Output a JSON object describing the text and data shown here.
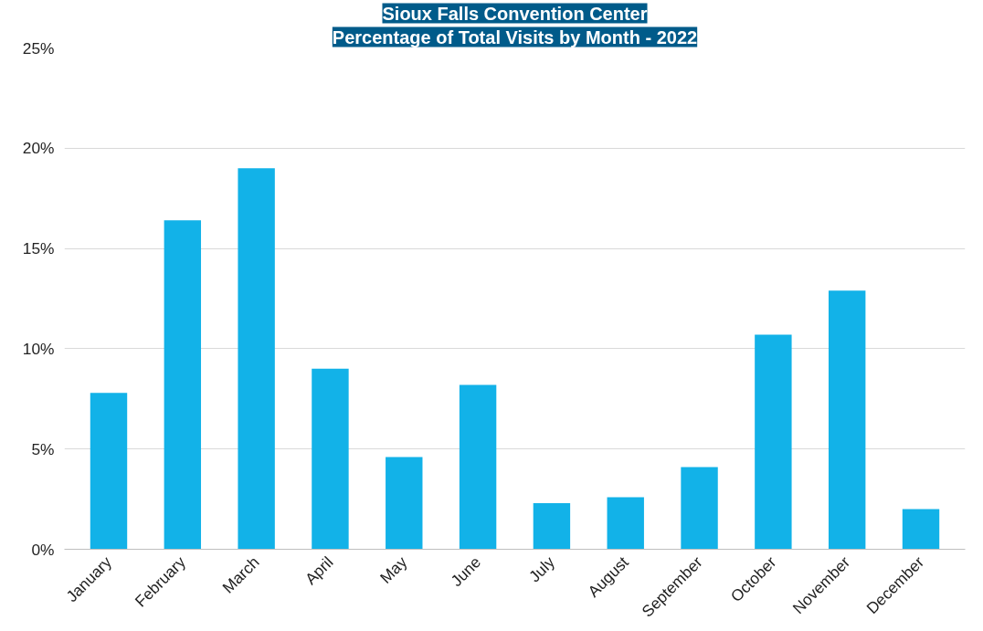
{
  "chart_data": {
    "type": "bar",
    "title": "Sioux Falls Convention Center",
    "subtitle": "Percentage of Total Visits by Month - 2022",
    "categories": [
      "January",
      "February",
      "March",
      "April",
      "May",
      "June",
      "July",
      "August",
      "September",
      "October",
      "November",
      "December"
    ],
    "values": [
      7.8,
      16.4,
      19.0,
      9.0,
      4.6,
      8.2,
      2.3,
      2.6,
      4.1,
      10.7,
      12.9,
      2.0
    ],
    "color": "#12b2e8",
    "ylim": [
      0,
      25
    ],
    "yticks": [
      {
        "value": 0,
        "label": "0%"
      },
      {
        "value": 5,
        "label": "5%"
      },
      {
        "value": 10,
        "label": "10%"
      },
      {
        "value": 15,
        "label": "15%"
      },
      {
        "value": 20,
        "label": "20%"
      },
      {
        "value": 25,
        "label": "25%"
      }
    ],
    "grid": "y"
  }
}
